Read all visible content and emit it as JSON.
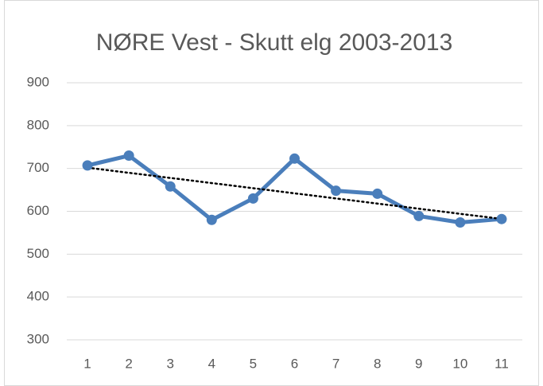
{
  "chart_data": {
    "type": "line",
    "title": "NØRE Vest - Skutt elg 2003-2013",
    "categories": [
      "1",
      "2",
      "3",
      "4",
      "5",
      "6",
      "7",
      "8",
      "9",
      "10",
      "11"
    ],
    "series": [
      {
        "color": "#4a7ebb",
        "values": [
          707,
          730,
          658,
          580,
          630,
          723,
          648,
          641,
          589,
          574,
          582
        ]
      }
    ],
    "trendline": "linear",
    "ylim": [
      300,
      900
    ],
    "yticks": [
      300,
      400,
      500,
      600,
      700,
      800,
      900
    ],
    "grid": true
  }
}
